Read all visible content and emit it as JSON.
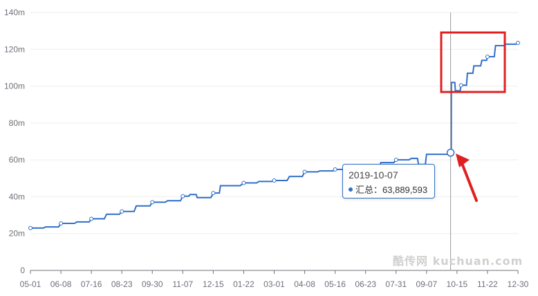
{
  "chart_data": {
    "type": "line",
    "title": "",
    "xlabel": "",
    "ylabel": "",
    "x_ticks": [
      "05-01",
      "06-08",
      "07-16",
      "08-23",
      "09-30",
      "11-07",
      "12-15",
      "01-22",
      "03-01",
      "04-08",
      "05-16",
      "06-23",
      "07-31",
      "09-07",
      "10-15",
      "11-22",
      "12-30"
    ],
    "y_ticks": [
      {
        "value": 0,
        "label": "0"
      },
      {
        "value": 20,
        "label": "20m"
      },
      {
        "value": 40,
        "label": "40m"
      },
      {
        "value": 60,
        "label": "60m"
      },
      {
        "value": 80,
        "label": "80m"
      },
      {
        "value": 100,
        "label": "100m"
      },
      {
        "value": 120,
        "label": "120m"
      },
      {
        "value": 140,
        "label": "140m"
      }
    ],
    "ylim": [
      0,
      140
    ],
    "unit": "millions",
    "grid": true,
    "series": [
      {
        "color": "#2f6fc7",
        "points": [
          {
            "date": "2018-05-01",
            "value": 23.0
          },
          {
            "date": "2018-05-20",
            "value": 23.6
          },
          {
            "date": "2018-06-08",
            "value": 25.5
          },
          {
            "date": "2018-06-28",
            "value": 26.3
          },
          {
            "date": "2018-07-16",
            "value": 28.0
          },
          {
            "date": "2018-08-04",
            "value": 30.5
          },
          {
            "date": "2018-08-23",
            "value": 32.0
          },
          {
            "date": "2018-09-10",
            "value": 35.0
          },
          {
            "date": "2018-09-30",
            "value": 37.0
          },
          {
            "date": "2018-10-19",
            "value": 37.8
          },
          {
            "date": "2018-11-07",
            "value": 40.3
          },
          {
            "date": "2018-11-16",
            "value": 41.2
          },
          {
            "date": "2018-11-25",
            "value": 39.5
          },
          {
            "date": "2018-12-15",
            "value": 42.0
          },
          {
            "date": "2018-12-24",
            "value": 46.0
          },
          {
            "date": "2019-01-22",
            "value": 47.5
          },
          {
            "date": "2019-02-10",
            "value": 48.3
          },
          {
            "date": "2019-03-01",
            "value": 48.8
          },
          {
            "date": "2019-03-20",
            "value": 51.0
          },
          {
            "date": "2019-04-08",
            "value": 53.5
          },
          {
            "date": "2019-04-27",
            "value": 54.0
          },
          {
            "date": "2019-05-16",
            "value": 54.8
          },
          {
            "date": "2019-06-04",
            "value": 55.0
          },
          {
            "date": "2019-06-23",
            "value": 55.5
          },
          {
            "date": "2019-07-12",
            "value": 58.5
          },
          {
            "date": "2019-07-31",
            "value": 60.0
          },
          {
            "date": "2019-08-19",
            "value": 60.8
          },
          {
            "date": "2019-08-28",
            "value": 57.5
          },
          {
            "date": "2019-09-07",
            "value": 63.0
          },
          {
            "date": "2019-10-07",
            "value": 63.889593
          },
          {
            "date": "2019-10-08",
            "value": 102.0
          },
          {
            "date": "2019-10-13",
            "value": 97.5
          },
          {
            "date": "2019-10-20",
            "value": 100.5
          },
          {
            "date": "2019-10-28",
            "value": 107.0
          },
          {
            "date": "2019-11-05",
            "value": 111.0
          },
          {
            "date": "2019-11-15",
            "value": 114.0
          },
          {
            "date": "2019-11-22",
            "value": 116.0
          },
          {
            "date": "2019-12-02",
            "value": 122.0
          },
          {
            "date": "2019-12-15",
            "value": 122.8
          },
          {
            "date": "2019-12-30",
            "value": 123.5
          }
        ]
      }
    ],
    "tooltip": {
      "date": "2019-10-07",
      "label": "汇总：",
      "value": "63,889,593"
    },
    "annotation_color": "#e02020"
  },
  "watermark": "酷传网 kuchuan.com"
}
